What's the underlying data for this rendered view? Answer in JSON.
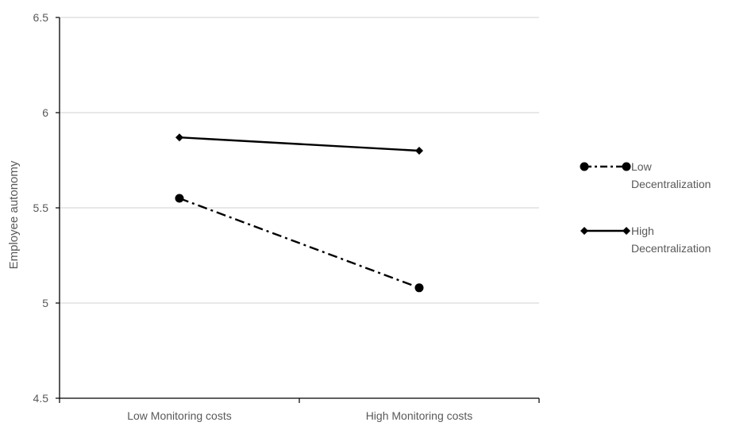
{
  "chart_data": {
    "type": "line",
    "title": "",
    "xlabel": "",
    "ylabel": "Employee autonomy",
    "categories": [
      "Low Monitoring costs",
      "High Monitoring costs"
    ],
    "ylim": [
      4.5,
      6.5
    ],
    "yticks": [
      "4.5",
      "5",
      "5.5",
      "6",
      "6.5"
    ],
    "grid": true,
    "legend_position": "right",
    "series": [
      {
        "name": "Low Decentralization",
        "legend_lines": [
          "Low",
          "Decentralization"
        ],
        "values": [
          5.55,
          5.08
        ],
        "line_style": "dash-dot",
        "marker": "circle",
        "color": "#000000"
      },
      {
        "name": "High Decentralization",
        "legend_lines": [
          "High",
          "Decentralization"
        ],
        "values": [
          5.87,
          5.8
        ],
        "line_style": "solid",
        "marker": "diamond",
        "color": "#000000"
      }
    ]
  }
}
